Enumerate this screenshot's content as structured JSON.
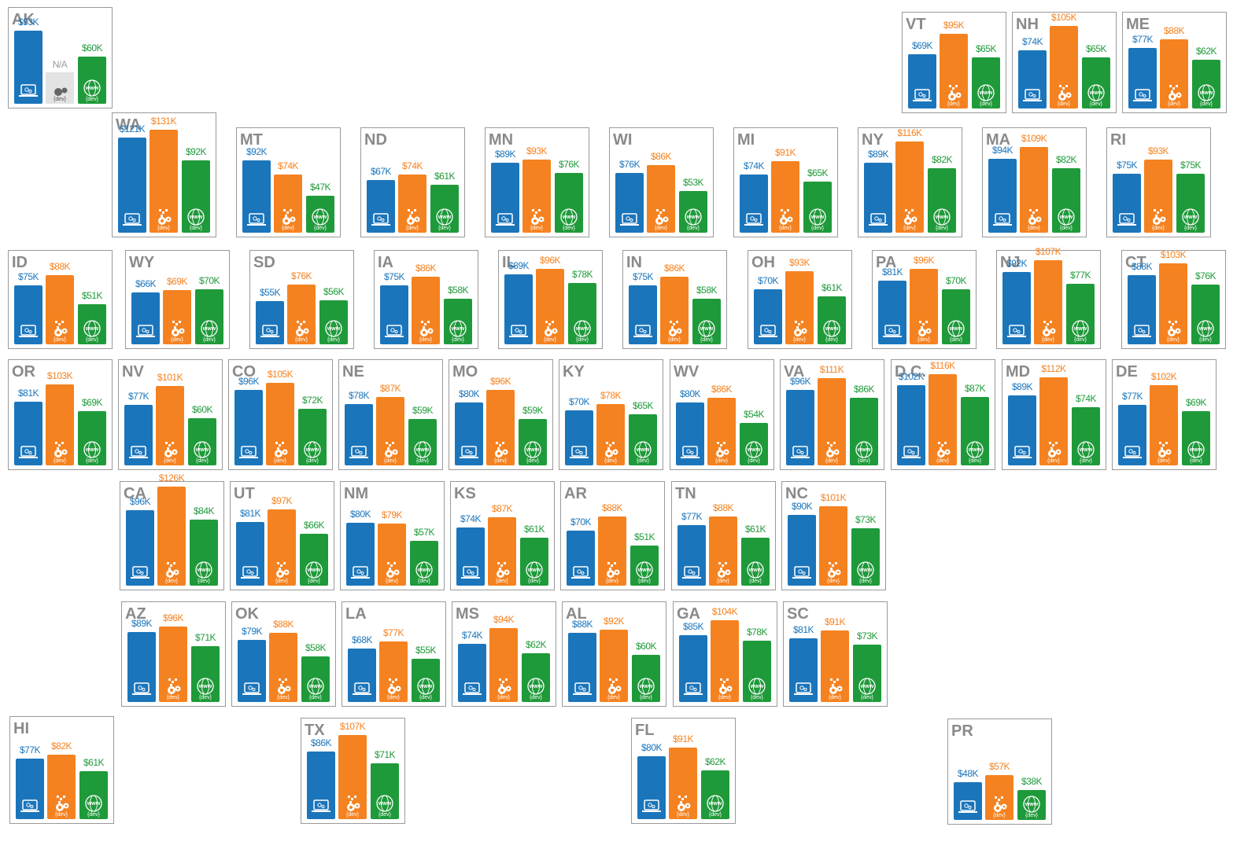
{
  "chart_data": {
    "type": "tile-bar",
    "colors": [
      "#1b75bb",
      "#f58220",
      "#1f9a3a"
    ],
    "na_color": "#e3e3e3",
    "icon_text": "{dev}",
    "globe_text": "www",
    "tiles": [
      {
        "label": "AK",
        "values": [
          93,
          null,
          60
        ],
        "value_labels": [
          "$93K",
          "N/A",
          "$60K"
        ]
      },
      {
        "label": "VT",
        "values": [
          69,
          95,
          65
        ],
        "value_labels": [
          "$69K",
          "$95K",
          "$65K"
        ]
      },
      {
        "label": "NH",
        "values": [
          74,
          105,
          65
        ],
        "value_labels": [
          "$74K",
          "$105K",
          "$65K"
        ]
      },
      {
        "label": "ME",
        "values": [
          77,
          88,
          62
        ],
        "value_labels": [
          "$77K",
          "$88K",
          "$62K"
        ]
      },
      {
        "label": "WA",
        "values": [
          121,
          131,
          92
        ],
        "value_labels": [
          "$121K",
          "$131K",
          "$92K"
        ]
      },
      {
        "label": "MT",
        "values": [
          92,
          74,
          47
        ],
        "value_labels": [
          "$92K",
          "$74K",
          "$47K"
        ]
      },
      {
        "label": "ND",
        "values": [
          67,
          74,
          61
        ],
        "value_labels": [
          "$67K",
          "$74K",
          "$61K"
        ]
      },
      {
        "label": "MN",
        "values": [
          89,
          93,
          76
        ],
        "value_labels": [
          "$89K",
          "$93K",
          "$76K"
        ]
      },
      {
        "label": "WI",
        "values": [
          76,
          86,
          53
        ],
        "value_labels": [
          "$76K",
          "$86K",
          "$53K"
        ]
      },
      {
        "label": "MI",
        "values": [
          74,
          91,
          65
        ],
        "value_labels": [
          "$74K",
          "$91K",
          "$65K"
        ]
      },
      {
        "label": "NY",
        "values": [
          89,
          116,
          82
        ],
        "value_labels": [
          "$89K",
          "$116K",
          "$82K"
        ]
      },
      {
        "label": "MA",
        "values": [
          94,
          109,
          82
        ],
        "value_labels": [
          "$94K",
          "$109K",
          "$82K"
        ]
      },
      {
        "label": "RI",
        "values": [
          75,
          93,
          75
        ],
        "value_labels": [
          "$75K",
          "$93K",
          "$75K"
        ]
      },
      {
        "label": "ID",
        "values": [
          75,
          88,
          51
        ],
        "value_labels": [
          "$75K",
          "$88K",
          "$51K"
        ]
      },
      {
        "label": "WY",
        "values": [
          66,
          69,
          70
        ],
        "value_labels": [
          "$66K",
          "$69K",
          "$70K"
        ]
      },
      {
        "label": "SD",
        "values": [
          55,
          76,
          56
        ],
        "value_labels": [
          "$55K",
          "$76K",
          "$56K"
        ]
      },
      {
        "label": "IA",
        "values": [
          75,
          86,
          58
        ],
        "value_labels": [
          "$75K",
          "$86K",
          "$58K"
        ]
      },
      {
        "label": "IL",
        "values": [
          89,
          96,
          78
        ],
        "value_labels": [
          "$89K",
          "$96K",
          "$78K"
        ]
      },
      {
        "label": "IN",
        "values": [
          75,
          86,
          58
        ],
        "value_labels": [
          "$75K",
          "$86K",
          "$58K"
        ]
      },
      {
        "label": "OH",
        "values": [
          70,
          93,
          61
        ],
        "value_labels": [
          "$70K",
          "$93K",
          "$61K"
        ]
      },
      {
        "label": "PA",
        "values": [
          81,
          96,
          70
        ],
        "value_labels": [
          "$81K",
          "$96K",
          "$70K"
        ]
      },
      {
        "label": "NJ",
        "values": [
          92,
          107,
          77
        ],
        "value_labels": [
          "$92K",
          "$107K",
          "$77K"
        ]
      },
      {
        "label": "CT",
        "values": [
          88,
          103,
          76
        ],
        "value_labels": [
          "$88K",
          "$103K",
          "$76K"
        ]
      },
      {
        "label": "OR",
        "values": [
          81,
          103,
          69
        ],
        "value_labels": [
          "$81K",
          "$103K",
          "$69K"
        ]
      },
      {
        "label": "NV",
        "values": [
          77,
          101,
          60
        ],
        "value_labels": [
          "$77K",
          "$101K",
          "$60K"
        ]
      },
      {
        "label": "CO",
        "values": [
          96,
          105,
          72
        ],
        "value_labels": [
          "$96K",
          "$105K",
          "$72K"
        ]
      },
      {
        "label": "NE",
        "values": [
          78,
          87,
          59
        ],
        "value_labels": [
          "$78K",
          "$87K",
          "$59K"
        ]
      },
      {
        "label": "MO",
        "values": [
          80,
          96,
          59
        ],
        "value_labels": [
          "$80K",
          "$96K",
          "$59K"
        ]
      },
      {
        "label": "KY",
        "values": [
          70,
          78,
          65
        ],
        "value_labels": [
          "$70K",
          "$78K",
          "$65K"
        ]
      },
      {
        "label": "WV",
        "values": [
          80,
          86,
          54
        ],
        "value_labels": [
          "$80K",
          "$86K",
          "$54K"
        ]
      },
      {
        "label": "VA",
        "values": [
          96,
          111,
          86
        ],
        "value_labels": [
          "$96K",
          "$111K",
          "$86K"
        ]
      },
      {
        "label": "D.C.",
        "values": [
          102,
          116,
          87
        ],
        "value_labels": [
          "$102K",
          "$116K",
          "$87K"
        ]
      },
      {
        "label": "MD",
        "values": [
          89,
          112,
          74
        ],
        "value_labels": [
          "$89K",
          "$112K",
          "$74K"
        ]
      },
      {
        "label": "DE",
        "values": [
          77,
          102,
          69
        ],
        "value_labels": [
          "$77K",
          "$102K",
          "$69K"
        ]
      },
      {
        "label": "CA",
        "values": [
          96,
          126,
          84
        ],
        "value_labels": [
          "$96K",
          "$126K",
          "$84K"
        ]
      },
      {
        "label": "UT",
        "values": [
          81,
          97,
          66
        ],
        "value_labels": [
          "$81K",
          "$97K",
          "$66K"
        ]
      },
      {
        "label": "NM",
        "values": [
          80,
          79,
          57
        ],
        "value_labels": [
          "$80K",
          "$79K",
          "$57K"
        ]
      },
      {
        "label": "KS",
        "values": [
          74,
          87,
          61
        ],
        "value_labels": [
          "$74K",
          "$87K",
          "$61K"
        ]
      },
      {
        "label": "AR",
        "values": [
          70,
          88,
          51
        ],
        "value_labels": [
          "$70K",
          "$88K",
          "$51K"
        ]
      },
      {
        "label": "TN",
        "values": [
          77,
          88,
          61
        ],
        "value_labels": [
          "$77K",
          "$88K",
          "$61K"
        ]
      },
      {
        "label": "NC",
        "values": [
          90,
          101,
          73
        ],
        "value_labels": [
          "$90K",
          "$101K",
          "$73K"
        ]
      },
      {
        "label": "AZ",
        "values": [
          89,
          96,
          71
        ],
        "value_labels": [
          "$89K",
          "$96K",
          "$71K"
        ]
      },
      {
        "label": "OK",
        "values": [
          79,
          88,
          58
        ],
        "value_labels": [
          "$79K",
          "$88K",
          "$58K"
        ]
      },
      {
        "label": "LA",
        "values": [
          68,
          77,
          55
        ],
        "value_labels": [
          "$68K",
          "$77K",
          "$55K"
        ]
      },
      {
        "label": "MS",
        "values": [
          74,
          94,
          62
        ],
        "value_labels": [
          "$74K",
          "$94K",
          "$62K"
        ]
      },
      {
        "label": "AL",
        "values": [
          88,
          92,
          60
        ],
        "value_labels": [
          "$88K",
          "$92K",
          "$60K"
        ]
      },
      {
        "label": "GA",
        "values": [
          85,
          104,
          78
        ],
        "value_labels": [
          "$85K",
          "$104K",
          "$78K"
        ]
      },
      {
        "label": "SC",
        "values": [
          81,
          91,
          73
        ],
        "value_labels": [
          "$81K",
          "$91K",
          "$73K"
        ]
      },
      {
        "label": "HI",
        "values": [
          77,
          82,
          61
        ],
        "value_labels": [
          "$77K",
          "$82K",
          "$61K"
        ]
      },
      {
        "label": "TX",
        "values": [
          86,
          107,
          71
        ],
        "value_labels": [
          "$86K",
          "$107K",
          "$71K"
        ]
      },
      {
        "label": "FL",
        "values": [
          80,
          91,
          62
        ],
        "value_labels": [
          "$80K",
          "$91K",
          "$62K"
        ]
      },
      {
        "label": "PR",
        "values": [
          48,
          57,
          38
        ],
        "value_labels": [
          "$48K",
          "$57K",
          "$38K"
        ]
      }
    ]
  }
}
